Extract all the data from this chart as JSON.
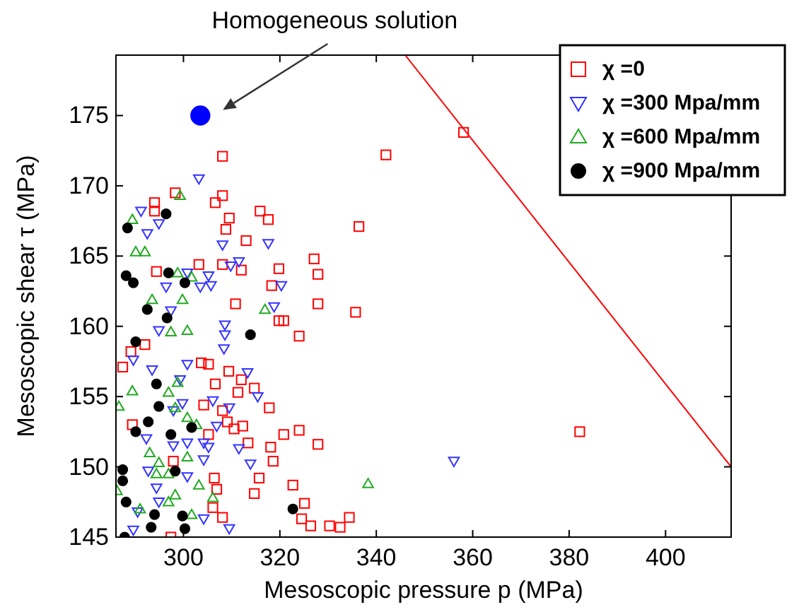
{
  "chart_data": {
    "type": "scatter",
    "xlabel": "Mesoscopic pressure p (MPa)",
    "ylabel": "Mesoscopic shear τ (MPa)",
    "xlim": [
      286,
      413.6
    ],
    "xticks": [
      300,
      320,
      340,
      360,
      380,
      400
    ],
    "ylim": [
      145,
      179.3
    ],
    "yticks": [
      145,
      150,
      155,
      160,
      165,
      170,
      175
    ],
    "grid": false,
    "legend": "top right",
    "annotations": [
      "Homogeneous solution"
    ],
    "series": [
      {
        "name": "χ =0",
        "color": "#ff0000",
        "marker": "square",
        "x": [
          308.1,
          298.3,
          308.1,
          306.6,
          294,
          294,
          315.9,
          317.6,
          309.5,
          308.8,
          313,
          319.8,
          303.2,
          308.1,
          312,
          294.4,
          318.3,
          310.8,
          319.8,
          289.1,
          292,
          287.4,
          303.7,
          305.2,
          309.4,
          312,
          306.6,
          311.3,
          314.7,
          317.8,
          304.2,
          308.1,
          309.1,
          312.3,
          289.4,
          310.5,
          305.2,
          320.8,
          313.4,
          318.1,
          297.9,
          318.6,
          315.7,
          322.7,
          306.4,
          306.9,
          314.7,
          306.1,
          308.1,
          297.4,
          342,
          336.4,
          327.1,
          327.9,
          327.9,
          335.7,
          324,
          320.8,
          324,
          327.9,
          325.1,
          324.5,
          326.4,
          330.3,
          332.5,
          334.4,
          358.1,
          382.2
        ],
        "values": [
          172.1,
          169.5,
          169.3,
          168.8,
          168.8,
          168.2,
          168.2,
          167.6,
          167.7,
          166.9,
          166.1,
          164.1,
          164.4,
          164.4,
          164,
          163.9,
          162.9,
          161.6,
          160.4,
          158.2,
          158.7,
          157.1,
          157.4,
          157.3,
          156.8,
          156.2,
          155.9,
          155.3,
          155.6,
          154.2,
          154.4,
          154,
          153.2,
          152.9,
          153,
          152.7,
          152.3,
          152.3,
          151.7,
          151.4,
          150.4,
          150.4,
          149.2,
          148.7,
          149.2,
          148.4,
          148.1,
          147.1,
          146.4,
          145,
          172.2,
          167.1,
          164.8,
          163.7,
          161.6,
          161,
          159.3,
          160.4,
          152.6,
          151.6,
          147.4,
          146.3,
          145.8,
          145.8,
          145.7,
          146.4,
          173.8,
          152.5
        ]
      },
      {
        "name": "χ =300 Mpa/mm",
        "color": "#3333ff",
        "marker": "triangle-down",
        "x": [
          303.2,
          291.2,
          294.9,
          292.5,
          308.1,
          317.6,
          311.5,
          309.8,
          300.8,
          305.2,
          303.5,
          305.7,
          296.4,
          320.3,
          318.8,
          297.4,
          294.9,
          308.6,
          308.6,
          308.4,
          300.8,
          293.5,
          289.6,
          313.3,
          299.3,
          315.4,
          306.1,
          299.8,
          309.5,
          297.9,
          306.9,
          292.3,
          304.2,
          300.8,
          297.9,
          311.5,
          305.2,
          304.2,
          313.9,
          292.7,
          294.4,
          300.8,
          294.9,
          290.5,
          304.2,
          309.5,
          289.6,
          356.1
        ],
        "values": [
          170.5,
          168.2,
          167.3,
          166.6,
          165.8,
          165.9,
          164.6,
          164.3,
          163.8,
          163.6,
          162.8,
          162.9,
          162.8,
          162.9,
          161.4,
          161.1,
          159.7,
          160.1,
          159.4,
          158.4,
          157.3,
          156.9,
          157.6,
          156.7,
          156.2,
          155,
          154.7,
          154.5,
          154.2,
          154,
          152.9,
          152,
          151.7,
          151.7,
          151.5,
          151.3,
          151.4,
          150.5,
          150.2,
          149.7,
          148.5,
          149.3,
          147.5,
          146.8,
          146.3,
          145.6,
          145.5,
          150.4
        ]
      },
      {
        "name": "χ =600 Mpa/mm",
        "color": "#22aa22",
        "marker": "triangle",
        "x": [
          299.3,
          289.4,
          290.1,
          292,
          301.7,
          298.8,
          293.5,
          299.8,
          316.9,
          297.4,
          300.8,
          289.4,
          286.6,
          296.9,
          298.8,
          298.3,
          300.8,
          302.7,
          293,
          294.9,
          296.9,
          294.4,
          300.8,
          303.2,
          286.2,
          298.3,
          306.1,
          296.9,
          291,
          301.7,
          338.3
        ],
        "values": [
          169.3,
          167.6,
          165.3,
          165.3,
          163.5,
          163.8,
          161.9,
          161.9,
          161.2,
          159.6,
          159.7,
          155.4,
          154.3,
          155.3,
          156,
          154.2,
          153.5,
          153,
          151,
          150.3,
          149.5,
          149.5,
          150.7,
          148.7,
          148.3,
          148,
          147.8,
          147.5,
          147,
          146.6,
          148.8
        ]
      },
      {
        "name": "χ =900 Mpa/mm",
        "color": "#000000",
        "marker": "circle",
        "x": [
          288.4,
          296.4,
          288.1,
          289.6,
          296.9,
          300.3,
          292.5,
          296.6,
          313.9,
          290.1,
          294.4,
          294.9,
          292.7,
          290.1,
          297.4,
          301.7,
          287.4,
          287.4,
          298.3,
          288.1,
          294,
          299.8,
          293.3,
          300.3,
          287.8,
          322.7
        ],
        "values": [
          167,
          168,
          163.6,
          163.1,
          163.8,
          163.1,
          161.2,
          160.6,
          159.4,
          158.9,
          155.9,
          154.3,
          153.2,
          152.5,
          152.3,
          152.8,
          149.8,
          149,
          149.7,
          147.5,
          146.6,
          146.5,
          145.7,
          145.6,
          145,
          147
        ]
      },
      {
        "color": "#0000ff",
        "marker": "circle",
        "x": [
          303.5
        ],
        "values": [
          175
        ]
      },
      {
        "type": "line",
        "color": "#ff0000",
        "marker": "none",
        "x": [
          346,
          413.6
        ],
        "values": [
          179.3,
          150
        ]
      }
    ]
  }
}
